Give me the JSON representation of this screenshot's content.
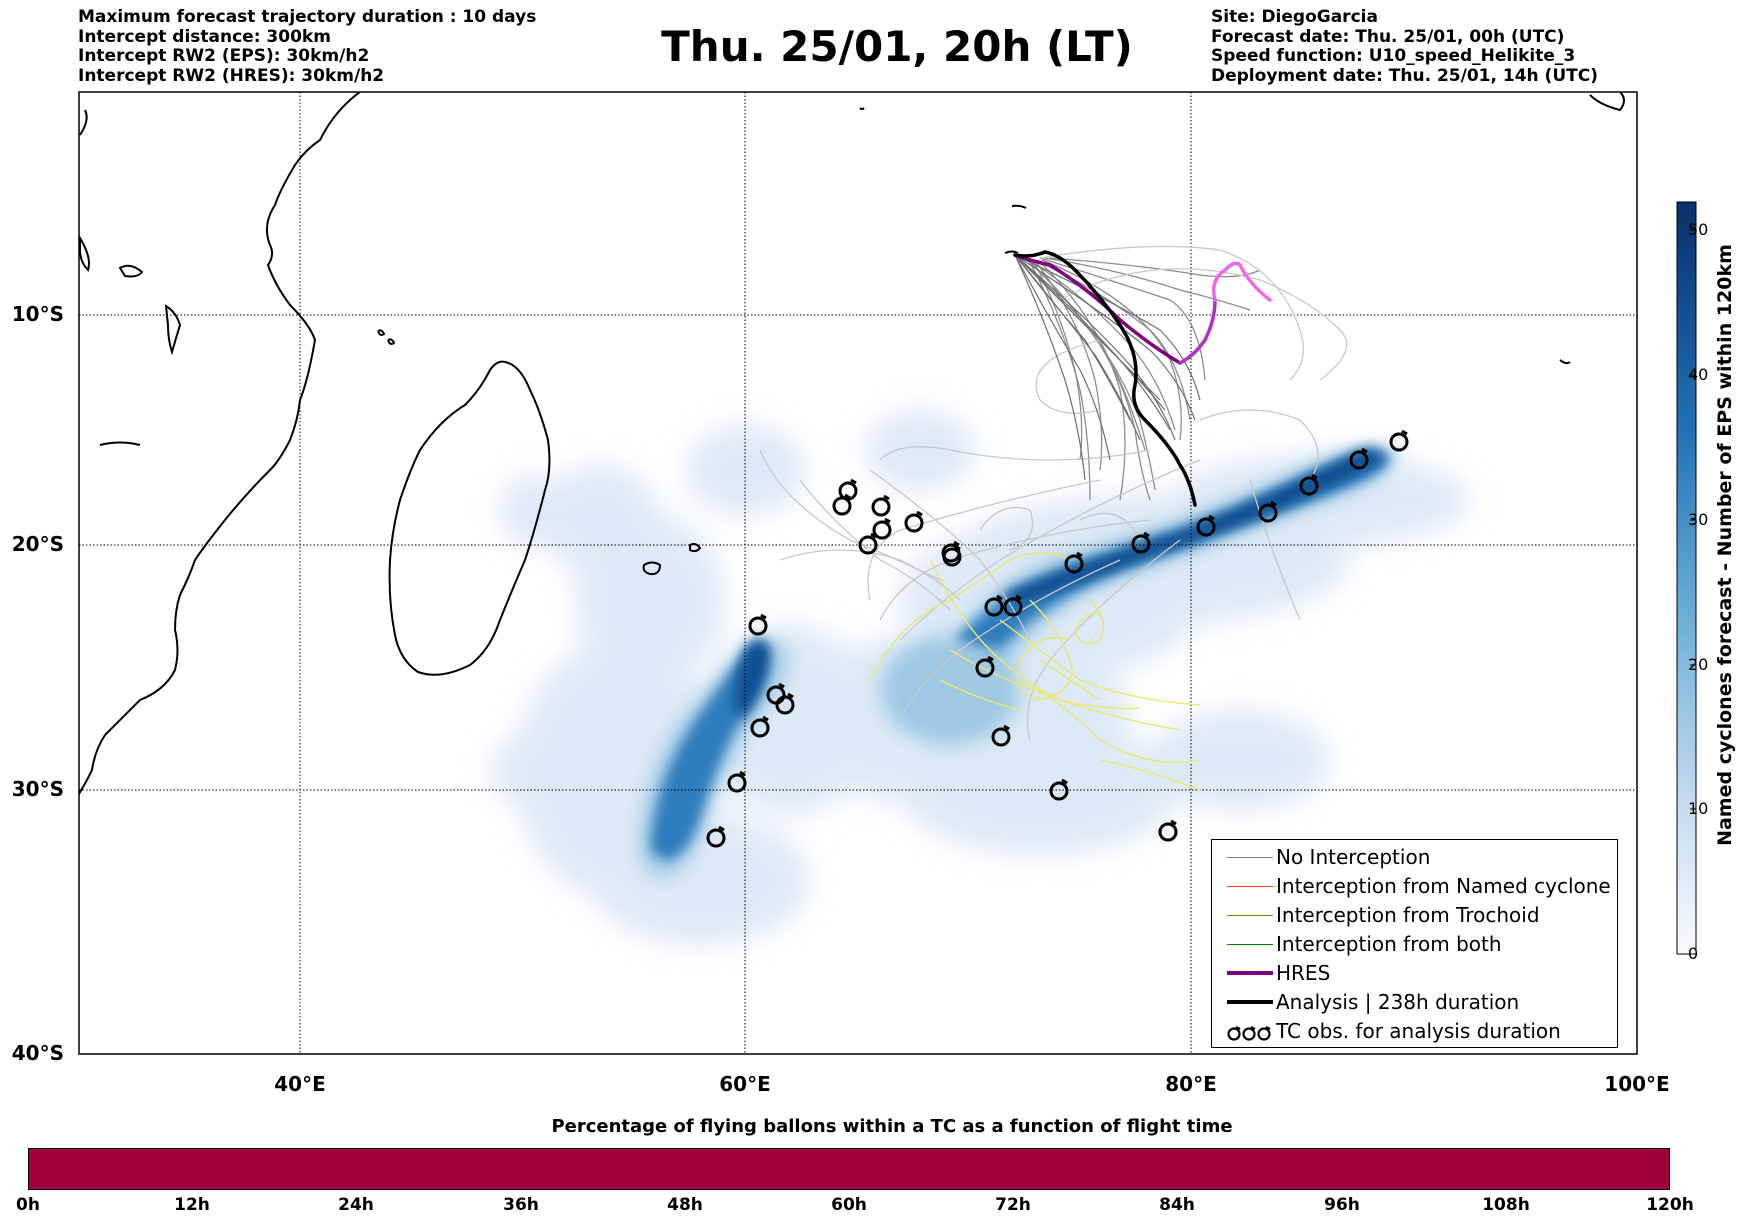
{
  "header": {
    "left_lines": [
      "Maximum forecast trajectory duration : 10 days",
      "Intercept distance: 300km",
      "Intercept RW2 (EPS):  30km/h2",
      "Intercept RW2 (HRES): 30km/h2"
    ],
    "title": "Thu. 25/01, 20h (LT)",
    "right_lines": [
      "Site: DiegoGarcia",
      "Forecast date: Thu. 25/01, 00h (UTC)",
      "Speed function: U10_speed_Helikite_3",
      "Deployment date: Thu. 25/01, 14h (UTC)"
    ]
  },
  "map": {
    "lon_range": [
      30,
      100
    ],
    "lat_range": [
      -40,
      0
    ],
    "lat_labels": [
      "10°S",
      "20°S",
      "30°S",
      "40°S"
    ],
    "lon_labels": [
      "40°E",
      "60°E",
      "80°E",
      "100°E"
    ]
  },
  "legend": {
    "items": [
      {
        "label": "No Interception",
        "color": "#808080"
      },
      {
        "label": "Interception from Named cyclone",
        "color": "#ff4500"
      },
      {
        "label": "Interception from Trochoid",
        "color": "#808000"
      },
      {
        "label": "Interception from both",
        "color": "#008000"
      },
      {
        "label": "HRES",
        "color": "#800080"
      },
      {
        "label": "Analysis | 238h duration",
        "color": "#000000"
      },
      {
        "label": "TC obs. for analysis duration",
        "icon": "cyclone-symbol-icon"
      }
    ]
  },
  "colorbar_right": {
    "title": "Named cyclones forecast - Number of EPS within 120km",
    "ticks": [
      "0",
      "10",
      "20",
      "30",
      "40",
      "50"
    ],
    "colors": [
      "#f7fbff",
      "#c6dbef",
      "#6baed6",
      "#2171b5",
      "#08306b"
    ]
  },
  "colorbar_bottom": {
    "title": "Percentage of flying ballons within a TC as a function of flight time",
    "ticks": [
      "0h",
      "12h",
      "24h",
      "36h",
      "48h",
      "60h",
      "72h",
      "84h",
      "96h",
      "108h",
      "120h"
    ],
    "fill_color": "#a0003c"
  }
}
